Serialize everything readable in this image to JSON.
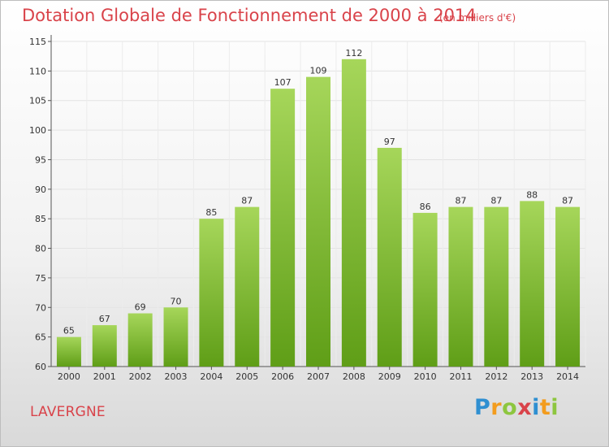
{
  "header": {
    "title": "Dotation Globale de Fonctionnement de 2000 à 2014",
    "unit": "(en milliers d'€)"
  },
  "footer": {
    "commune": "LAVERGNE",
    "logo_letters": [
      "P",
      "r",
      "o",
      "x",
      "i",
      "t",
      "i"
    ],
    "logo_colors": [
      "#2f8fd1",
      "#f39c1e",
      "#8dc63f",
      "#d9434a",
      "#2f8fd1",
      "#f39c1e",
      "#8dc63f"
    ]
  },
  "colors": {
    "bar_top": "#a6d65a",
    "bar_bottom": "#5f9e17",
    "text_accent": "#d9434a"
  },
  "chart_data": {
    "type": "bar",
    "title": "Dotation Globale de Fonctionnement de 2000 à 2014",
    "subtitle": "(en milliers d'€)",
    "categories": [
      "2000",
      "2001",
      "2002",
      "2003",
      "2004",
      "2005",
      "2006",
      "2007",
      "2008",
      "2009",
      "2010",
      "2011",
      "2012",
      "2013",
      "2014"
    ],
    "values": [
      65,
      67,
      69,
      70,
      85,
      87,
      107,
      109,
      112,
      97,
      86,
      87,
      87,
      88,
      87
    ],
    "ylim": [
      60,
      115
    ],
    "yticks": [
      60,
      65,
      70,
      75,
      80,
      85,
      90,
      95,
      100,
      105,
      110,
      115
    ],
    "grid": true,
    "xlabel": "",
    "ylabel": ""
  }
}
